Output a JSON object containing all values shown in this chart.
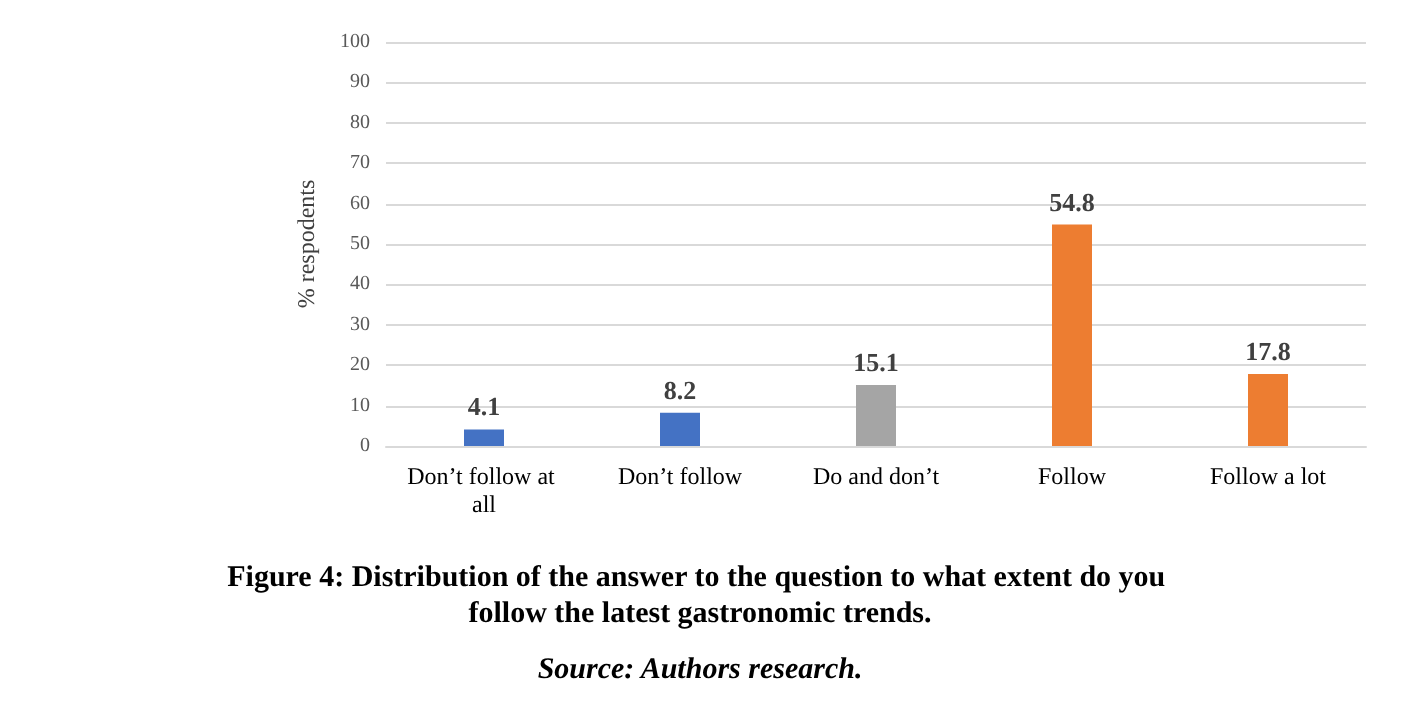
{
  "chart_data": {
    "type": "bar",
    "ylabel": "% respodents",
    "categories": [
      "Don’t follow at all",
      "Don’t follow",
      "Do and don’t",
      "Follow",
      "Follow a lot"
    ],
    "values": [
      4.1,
      8.2,
      15.1,
      54.8,
      17.8
    ],
    "colors": [
      "#4472c4",
      "#4472c4",
      "#a5a5a5",
      "#ed7d31",
      "#ed7d31"
    ],
    "ylim": [
      0,
      100
    ],
    "yticks": [
      0,
      10,
      20,
      30,
      40,
      50,
      60,
      70,
      80,
      90,
      100
    ],
    "grid": "y",
    "data_labels": true,
    "annotations": [
      "Figure 4: Distribution of the answer to the question to what extent do you follow the latest gastronomic trends.",
      "Source: Authors research."
    ]
  }
}
